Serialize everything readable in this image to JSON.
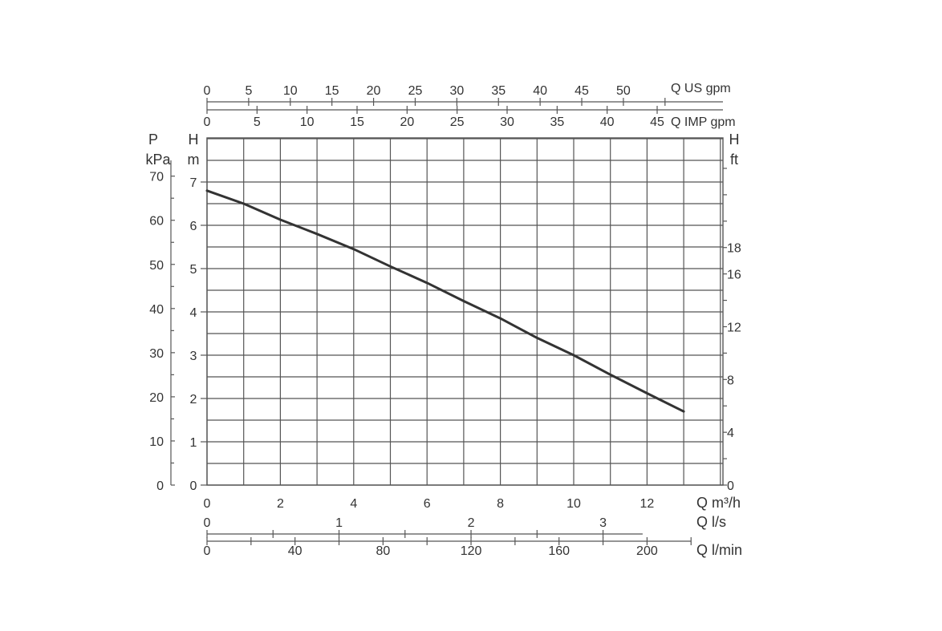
{
  "chart_data": {
    "type": "line",
    "title": "",
    "series": [
      {
        "name": "",
        "x": [
          0,
          1,
          2,
          3,
          4,
          5,
          6,
          7,
          8,
          9,
          10,
          11,
          12,
          13
        ],
        "y": [
          6.8,
          6.5,
          6.13,
          5.8,
          5.45,
          5.05,
          4.67,
          4.25,
          3.85,
          3.4,
          3.0,
          2.55,
          2.12,
          1.7
        ]
      }
    ],
    "xlim": [
      0,
      14
    ],
    "ylim": [
      0,
      8
    ],
    "grid": true,
    "axes": {
      "bottom": [
        {
          "label": "Q m³/h",
          "ticks": [
            "0",
            "2",
            "4",
            "6",
            "8",
            "10",
            "12"
          ],
          "values": [
            0,
            2,
            4,
            6,
            8,
            10,
            12
          ]
        },
        {
          "label": "Q l/s",
          "ticks": [
            "0",
            "1",
            "2",
            "3"
          ],
          "values": [
            0,
            1,
            2,
            3
          ]
        },
        {
          "label": "Q l/min",
          "ticks": [
            "0",
            "40",
            "80",
            "120",
            "160",
            "200"
          ],
          "values": [
            0,
            40,
            80,
            120,
            160,
            200
          ]
        }
      ],
      "top": [
        {
          "label": "Q US gpm",
          "ticks": [
            "0",
            "5",
            "10",
            "15",
            "20",
            "25",
            "30",
            "35",
            "40",
            "45",
            "50"
          ],
          "values": [
            0,
            5,
            10,
            15,
            20,
            25,
            30,
            35,
            40,
            45,
            50
          ]
        },
        {
          "label": "Q IMP gpm",
          "ticks": [
            "0",
            "5",
            "10",
            "15",
            "20",
            "25",
            "30",
            "35",
            "40",
            "45"
          ],
          "values": [
            0,
            5,
            10,
            15,
            20,
            25,
            30,
            35,
            40,
            45
          ]
        }
      ],
      "left_p": {
        "label_top": "P",
        "label_unit": "kPa",
        "ticks": [
          "0",
          "10",
          "20",
          "30",
          "40",
          "50",
          "60",
          "70"
        ],
        "values": [
          0,
          10,
          20,
          30,
          40,
          50,
          60,
          70
        ]
      },
      "left_h": {
        "label_top": "H",
        "label_unit": "m",
        "ticks": [
          "0",
          "1",
          "2",
          "3",
          "4",
          "5",
          "6",
          "7"
        ],
        "values": [
          0,
          1,
          2,
          3,
          4,
          5,
          6,
          7
        ]
      },
      "right_h": {
        "label_top": "H",
        "label_unit": "ft",
        "ticks": [
          "0",
          "4",
          "8",
          "12",
          "16",
          "18"
        ],
        "values": [
          0,
          4,
          8,
          12,
          16,
          18
        ]
      }
    },
    "colors": {
      "curve": "#333333",
      "grid": "#555555",
      "text": "#333333"
    }
  }
}
